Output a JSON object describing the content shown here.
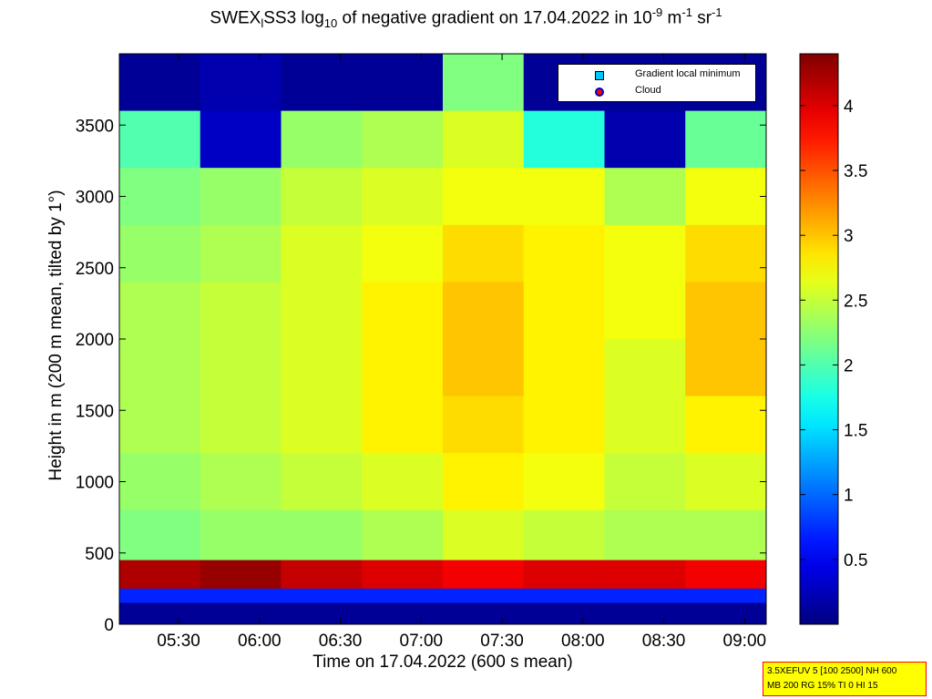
{
  "title": {
    "prefix": "SWEX",
    "sub1": "l",
    "mid": "SS3 log",
    "sub2": "10",
    "rest": " of negative gradient on 17.04.2022 in 10",
    "sup1": "-9",
    "mid2": " m",
    "sup2": "-1",
    "mid3": " sr",
    "sup3": "-1"
  },
  "legend": {
    "items": [
      {
        "label": "Gradient local minimum",
        "color": "#00c8ff",
        "border": "#000000",
        "shape": "square"
      },
      {
        "label": "Cloud",
        "color": "#ff0000",
        "border": "#0000c0",
        "shape": "circle"
      }
    ]
  },
  "info_box": {
    "line1": "3.5XEFUV 5 [100 2500] NH 600",
    "line2": "MB 200 RG 15% TI 0 HI 15"
  },
  "colorbar": {
    "ticks": [
      "0.5",
      "1",
      "1.5",
      "2",
      "2.5",
      "3",
      "3.5",
      "4"
    ],
    "range": [
      0,
      4.4
    ]
  },
  "chart_data": {
    "type": "heatmap",
    "title": "SWEX_l SS3 log10 of negative gradient on 17.04.2022 in 10^-9 m^-1 sr^-1",
    "xlabel": "Time on 17.04.2022 (600 s mean)",
    "ylabel": "Height in m (200 m mean, tilted by 1°)",
    "x_ticks": [
      "05:30",
      "06:00",
      "06:30",
      "07:00",
      "07:30",
      "08:00",
      "08:30",
      "09:00"
    ],
    "y_ticks": [
      "0",
      "500",
      "1000",
      "1500",
      "2000",
      "2500",
      "3000",
      "3500"
    ],
    "xlim": [
      "05:08",
      "09:08"
    ],
    "ylim": [
      0,
      4000
    ],
    "zlim": [
      0,
      4.4
    ],
    "columns": [
      "05:08",
      "05:38",
      "06:08",
      "06:38",
      "07:08",
      "07:38",
      "08:08",
      "08:38"
    ],
    "rows_height_m": [
      3800,
      3400,
      3000,
      2600,
      2200,
      1800,
      1400,
      1000,
      600,
      300,
      200,
      100
    ],
    "values": [
      [
        0.1,
        0.2,
        0.1,
        0.1,
        2.2,
        0.1,
        0.1,
        0.1
      ],
      [
        2.0,
        0.3,
        2.3,
        2.4,
        2.6,
        1.8,
        0.2,
        2.1
      ],
      [
        2.2,
        2.3,
        2.5,
        2.6,
        2.7,
        2.7,
        2.4,
        2.7
      ],
      [
        2.3,
        2.4,
        2.6,
        2.7,
        2.9,
        2.8,
        2.7,
        2.9
      ],
      [
        2.4,
        2.5,
        2.6,
        2.8,
        3.0,
        2.8,
        2.7,
        3.0
      ],
      [
        2.4,
        2.5,
        2.6,
        2.8,
        3.0,
        2.8,
        2.6,
        3.0
      ],
      [
        2.4,
        2.5,
        2.6,
        2.8,
        2.9,
        2.8,
        2.6,
        2.8
      ],
      [
        2.3,
        2.4,
        2.5,
        2.6,
        2.8,
        2.7,
        2.5,
        2.6
      ],
      [
        2.2,
        2.3,
        2.3,
        2.4,
        2.6,
        2.5,
        2.4,
        2.4
      ],
      [
        4.2,
        4.3,
        4.1,
        4.0,
        3.9,
        4.0,
        4.0,
        3.9
      ],
      [
        0.7,
        0.7,
        0.7,
        0.7,
        0.7,
        0.7,
        0.7,
        0.7
      ],
      [
        0.1,
        0.1,
        0.1,
        0.1,
        0.1,
        0.1,
        0.1,
        0.1
      ]
    ]
  }
}
